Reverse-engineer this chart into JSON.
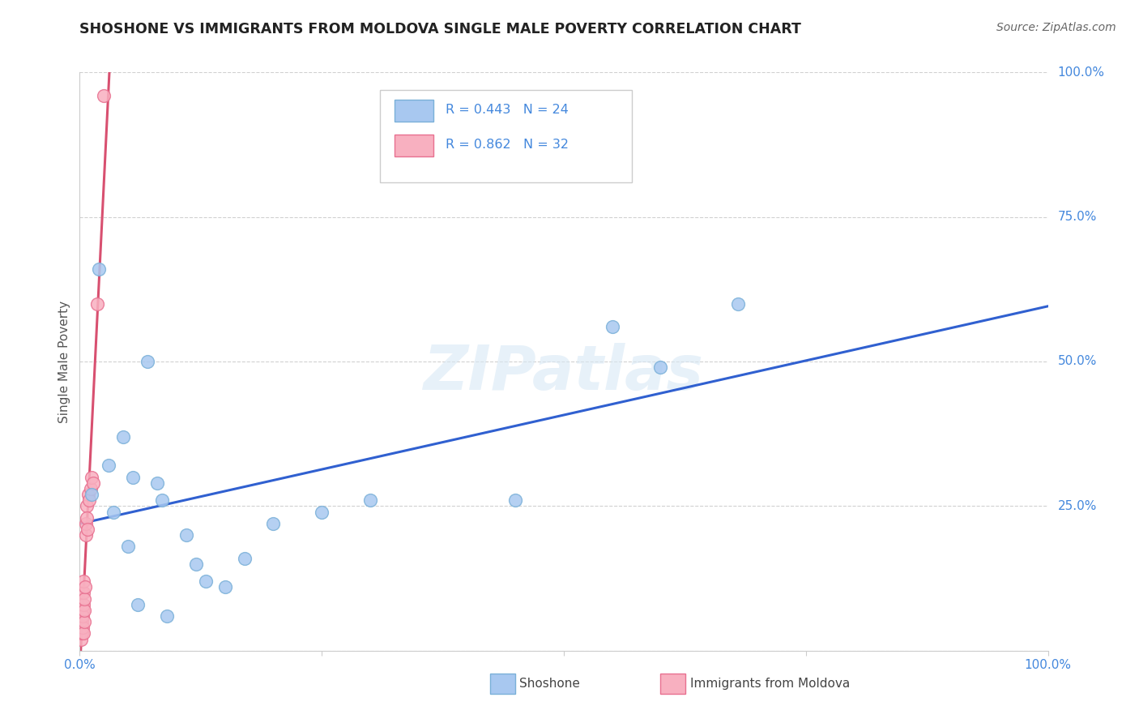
{
  "title": "SHOSHONE VS IMMIGRANTS FROM MOLDOVA SINGLE MALE POVERTY CORRELATION CHART",
  "source": "Source: ZipAtlas.com",
  "ylabel": "Single Male Poverty",
  "xlim": [
    0,
    100
  ],
  "ylim": [
    0,
    100
  ],
  "shoshone_color": "#a8c8f0",
  "shoshone_edge_color": "#7ab0d8",
  "moldova_color": "#f8b0c0",
  "moldova_edge_color": "#e87090",
  "blue_line_color": "#3060d0",
  "pink_line_color": "#d85070",
  "R_shoshone": 0.443,
  "N_shoshone": 24,
  "R_moldova": 0.862,
  "N_moldova": 32,
  "legend_text_color": "#4488dd",
  "watermark": "ZIPatlas",
  "shoshone_x": [
    1.2,
    3.0,
    4.5,
    8.0,
    7.0,
    3.5,
    6.0,
    9.0,
    13.0,
    5.0,
    2.0,
    11.0,
    17.0,
    5.5,
    8.5,
    20.0,
    25.0,
    55.0,
    68.0,
    60.0,
    45.0,
    30.0,
    15.0,
    12.0
  ],
  "shoshone_y": [
    27.0,
    32.0,
    37.0,
    29.0,
    50.0,
    24.0,
    8.0,
    6.0,
    12.0,
    18.0,
    66.0,
    20.0,
    16.0,
    30.0,
    26.0,
    22.0,
    24.0,
    56.0,
    60.0,
    49.0,
    26.0,
    26.0,
    11.0,
    15.0
  ],
  "moldova_x": [
    0.05,
    0.08,
    0.1,
    0.12,
    0.15,
    0.18,
    0.2,
    0.22,
    0.25,
    0.28,
    0.3,
    0.32,
    0.35,
    0.38,
    0.4,
    0.42,
    0.45,
    0.48,
    0.5,
    0.55,
    0.6,
    0.65,
    0.7,
    0.75,
    0.8,
    0.9,
    1.0,
    1.1,
    1.2,
    1.4,
    1.8,
    2.5
  ],
  "moldova_y": [
    3.0,
    5.0,
    2.0,
    4.0,
    8.0,
    6.0,
    10.0,
    3.0,
    5.0,
    7.0,
    4.0,
    6.0,
    8.0,
    10.0,
    12.0,
    3.0,
    5.0,
    7.0,
    9.0,
    11.0,
    20.0,
    22.0,
    25.0,
    23.0,
    21.0,
    27.0,
    26.0,
    28.0,
    30.0,
    29.0,
    60.0,
    96.0
  ]
}
